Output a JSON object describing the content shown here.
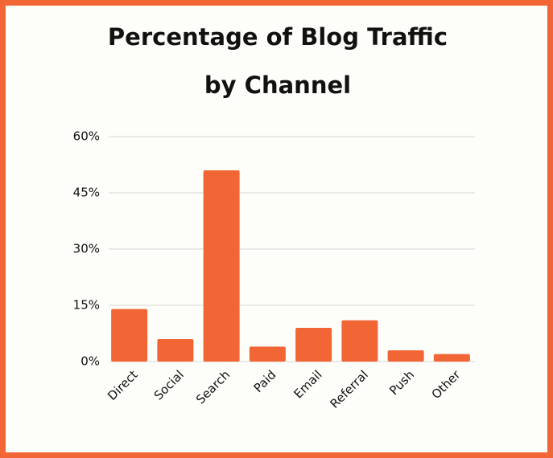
{
  "chart_data": {
    "type": "bar",
    "title": [
      "Percentage of Blog Traffic",
      "by Channel"
    ],
    "categories": [
      "Direct",
      "Social",
      "Search",
      "Paid",
      "Email",
      "Referral",
      "Push",
      "Other"
    ],
    "values": [
      14,
      6,
      51,
      4,
      9,
      11,
      3,
      2
    ],
    "color": "#f26535",
    "ylim": [
      0,
      60
    ],
    "yticks": [
      {
        "value": 0,
        "label": "0%"
      },
      {
        "value": 15,
        "label": "15%"
      },
      {
        "value": 30,
        "label": "30%"
      },
      {
        "value": 45,
        "label": "45%"
      },
      {
        "value": 60,
        "label": "60%"
      }
    ],
    "grid": true
  }
}
